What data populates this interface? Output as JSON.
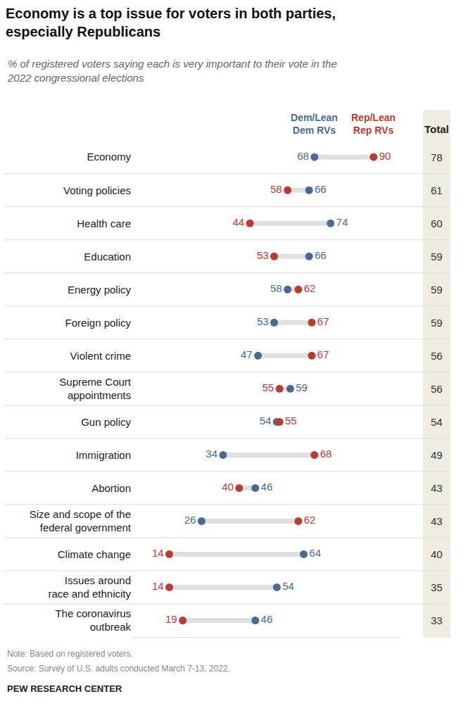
{
  "chart_data": {
    "type": "dot",
    "orientation": "horizontal",
    "title": "Economy is a top issue for voters in both parties,\nespecially Republicans",
    "subtitle": "% of registered voters saying each is very important to their vote in the\n2022 congressional elections",
    "categories": [
      "Economy",
      "Voting policies",
      "Health care",
      "Education",
      "Energy policy",
      "Foreign policy",
      "Violent crime",
      "Supreme Court\nappointments",
      "Gun policy",
      "Immigration",
      "Abortion",
      "Size and scope of the\nfederal government",
      "Climate change",
      "Issues around\nrace and ethnicity",
      "The coronavirus\noutbreak"
    ],
    "series": [
      {
        "name": "Dem/Lean\nDem RVs",
        "color": "#466b97",
        "marker": "circle",
        "values": [
          68,
          66,
          74,
          66,
          58,
          53,
          47,
          59,
          54,
          34,
          46,
          26,
          64,
          54,
          46
        ]
      },
      {
        "name": "Rep/Lean\nRep RVs",
        "color": "#bf3a2e",
        "marker": "circle",
        "values": [
          90,
          58,
          44,
          53,
          62,
          67,
          67,
          55,
          55,
          68,
          40,
          62,
          14,
          14,
          19
        ]
      }
    ],
    "total": {
      "name": "Total",
      "values": [
        78,
        61,
        60,
        59,
        59,
        59,
        56,
        56,
        54,
        49,
        43,
        43,
        40,
        35,
        33
      ]
    },
    "xlim": [
      0,
      100
    ],
    "xticks": [],
    "grid": false,
    "data_labels": true,
    "tick_labels": "y",
    "notes": [
      "Note: Based on registered voters.",
      "Source: Survey of U.S. adults conducted March 7-13, 2022."
    ],
    "credit": "PEW RESEARCH CENTER"
  }
}
